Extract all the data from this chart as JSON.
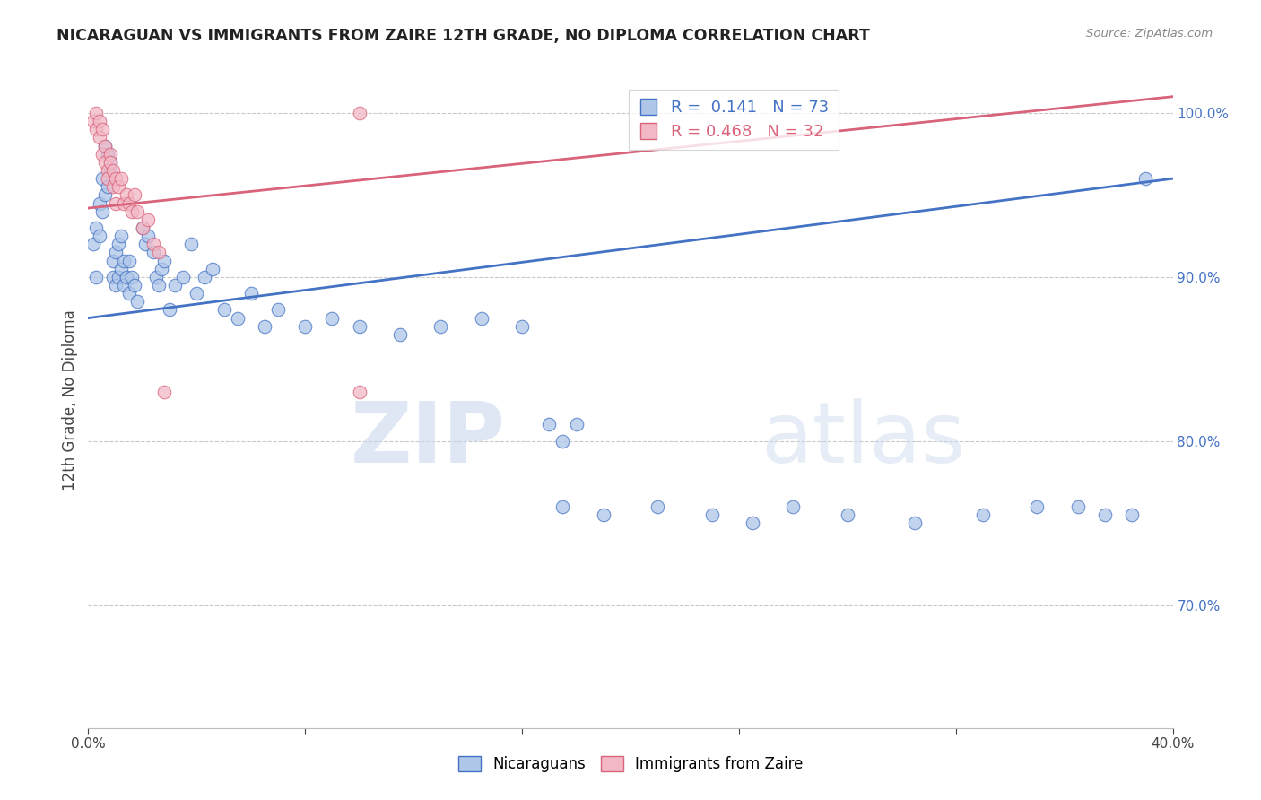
{
  "title": "NICARAGUAN VS IMMIGRANTS FROM ZAIRE 12TH GRADE, NO DIPLOMA CORRELATION CHART",
  "source": "Source: ZipAtlas.com",
  "ylabel": "12th Grade, No Diploma",
  "xmin": 0.0,
  "xmax": 0.4,
  "ymin": 0.625,
  "ymax": 1.025,
  "x_ticks": [
    0.0,
    0.08,
    0.16,
    0.24,
    0.32,
    0.4
  ],
  "x_tick_labels": [
    "0.0%",
    "",
    "",
    "",
    "",
    "40.0%"
  ],
  "y_ticks": [
    0.7,
    0.8,
    0.9,
    1.0
  ],
  "y_tick_labels": [
    "70.0%",
    "80.0%",
    "90.0%",
    "100.0%"
  ],
  "blue_color": "#aec6e8",
  "pink_color": "#f2b8c6",
  "blue_line_color": "#4472c4",
  "pink_line_color": "#d9637a",
  "legend_blue_R": "0.141",
  "legend_blue_N": "73",
  "legend_pink_R": "0.468",
  "legend_pink_N": "32",
  "legend_blue_label": "Nicaraguans",
  "legend_pink_label": "Immigrants from Zaire",
  "blue_line_x": [
    0.0,
    0.4
  ],
  "blue_line_y": [
    0.875,
    0.96
  ],
  "pink_line_x": [
    0.0,
    0.4
  ],
  "pink_line_y": [
    0.942,
    1.01
  ],
  "blue_scatter_x": [
    0.002,
    0.003,
    0.003,
    0.004,
    0.004,
    0.005,
    0.005,
    0.006,
    0.006,
    0.007,
    0.007,
    0.008,
    0.008,
    0.009,
    0.009,
    0.01,
    0.01,
    0.011,
    0.011,
    0.012,
    0.012,
    0.013,
    0.013,
    0.014,
    0.015,
    0.015,
    0.016,
    0.017,
    0.018,
    0.02,
    0.021,
    0.022,
    0.024,
    0.025,
    0.026,
    0.027,
    0.028,
    0.03,
    0.032,
    0.035,
    0.038,
    0.04,
    0.043,
    0.046,
    0.05,
    0.055,
    0.06,
    0.065,
    0.07,
    0.08,
    0.09,
    0.1,
    0.115,
    0.13,
    0.145,
    0.16,
    0.175,
    0.19,
    0.21,
    0.23,
    0.245,
    0.26,
    0.28,
    0.305,
    0.33,
    0.35,
    0.365,
    0.375,
    0.385,
    0.39,
    0.17,
    0.175,
    0.18
  ],
  "blue_scatter_y": [
    0.92,
    0.9,
    0.93,
    0.925,
    0.945,
    0.94,
    0.96,
    0.98,
    0.95,
    0.955,
    0.975,
    0.97,
    0.965,
    0.9,
    0.91,
    0.895,
    0.915,
    0.9,
    0.92,
    0.905,
    0.925,
    0.895,
    0.91,
    0.9,
    0.89,
    0.91,
    0.9,
    0.895,
    0.885,
    0.93,
    0.92,
    0.925,
    0.915,
    0.9,
    0.895,
    0.905,
    0.91,
    0.88,
    0.895,
    0.9,
    0.92,
    0.89,
    0.9,
    0.905,
    0.88,
    0.875,
    0.89,
    0.87,
    0.88,
    0.87,
    0.875,
    0.87,
    0.865,
    0.87,
    0.875,
    0.87,
    0.76,
    0.755,
    0.76,
    0.755,
    0.75,
    0.76,
    0.755,
    0.75,
    0.755,
    0.76,
    0.76,
    0.755,
    0.755,
    0.96,
    0.81,
    0.8,
    0.81
  ],
  "pink_scatter_x": [
    0.002,
    0.003,
    0.003,
    0.004,
    0.004,
    0.005,
    0.005,
    0.006,
    0.006,
    0.007,
    0.007,
    0.008,
    0.008,
    0.009,
    0.009,
    0.01,
    0.01,
    0.011,
    0.012,
    0.013,
    0.014,
    0.015,
    0.016,
    0.017,
    0.018,
    0.02,
    0.022,
    0.024,
    0.026,
    0.028,
    0.1,
    0.1
  ],
  "pink_scatter_y": [
    0.995,
    0.99,
    1.0,
    0.995,
    0.985,
    0.99,
    0.975,
    0.97,
    0.98,
    0.965,
    0.96,
    0.975,
    0.97,
    0.955,
    0.965,
    0.96,
    0.945,
    0.955,
    0.96,
    0.945,
    0.95,
    0.945,
    0.94,
    0.95,
    0.94,
    0.93,
    0.935,
    0.92,
    0.915,
    0.83,
    0.83,
    1.0
  ]
}
